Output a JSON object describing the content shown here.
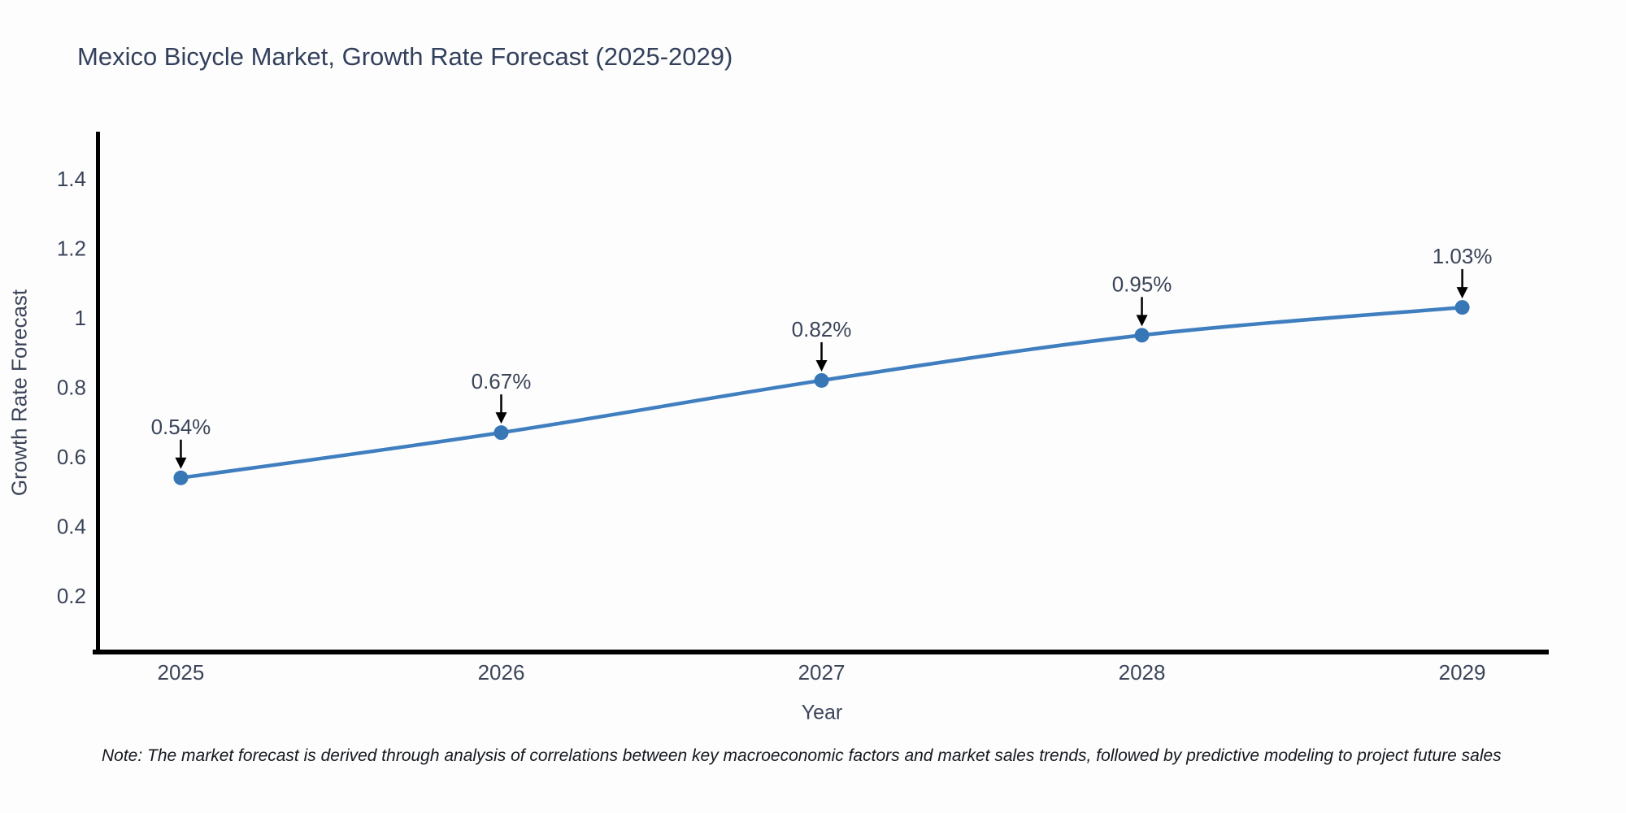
{
  "page": {
    "background": "#fdfdfd"
  },
  "note": {
    "text": "Note: The market forecast is derived through analysis of correlations between key macroeconomic factors and market sales trends, followed by predictive modeling to project future sales"
  },
  "chart_data": {
    "type": "line",
    "title": "Mexico Bicycle Market, Growth Rate Forecast (2025-2029)",
    "xlabel": "Year",
    "ylabel": "Growth Rate Forecast",
    "x": [
      2025,
      2026,
      2027,
      2028,
      2029
    ],
    "y": [
      0.54,
      0.67,
      0.82,
      0.95,
      1.03
    ],
    "point_labels": [
      "0.54%",
      "0.67%",
      "0.82%",
      "0.95%",
      "1.03%"
    ],
    "xtick_labels": [
      "2025",
      "2026",
      "2027",
      "2028",
      "2029"
    ],
    "ytick_values": [
      0.2,
      0.4,
      0.6,
      0.8,
      1.0,
      1.2,
      1.4
    ],
    "ytick_labels": [
      "0.2",
      "0.4",
      "0.6",
      "0.8",
      "1",
      "1.2",
      "1.4"
    ],
    "xlim": [
      2024.74,
      2029.27
    ],
    "ylim": [
      0.044,
      1.535
    ],
    "grid": false,
    "legend": "none",
    "line_color": "#3f7ebf",
    "marker_color": "#3877b6",
    "axis_color": "#000000",
    "tick_color": "#3b4459",
    "annotation_color": "#3b4459",
    "arrow_color": "#000000",
    "title_color": "#33405c"
  }
}
